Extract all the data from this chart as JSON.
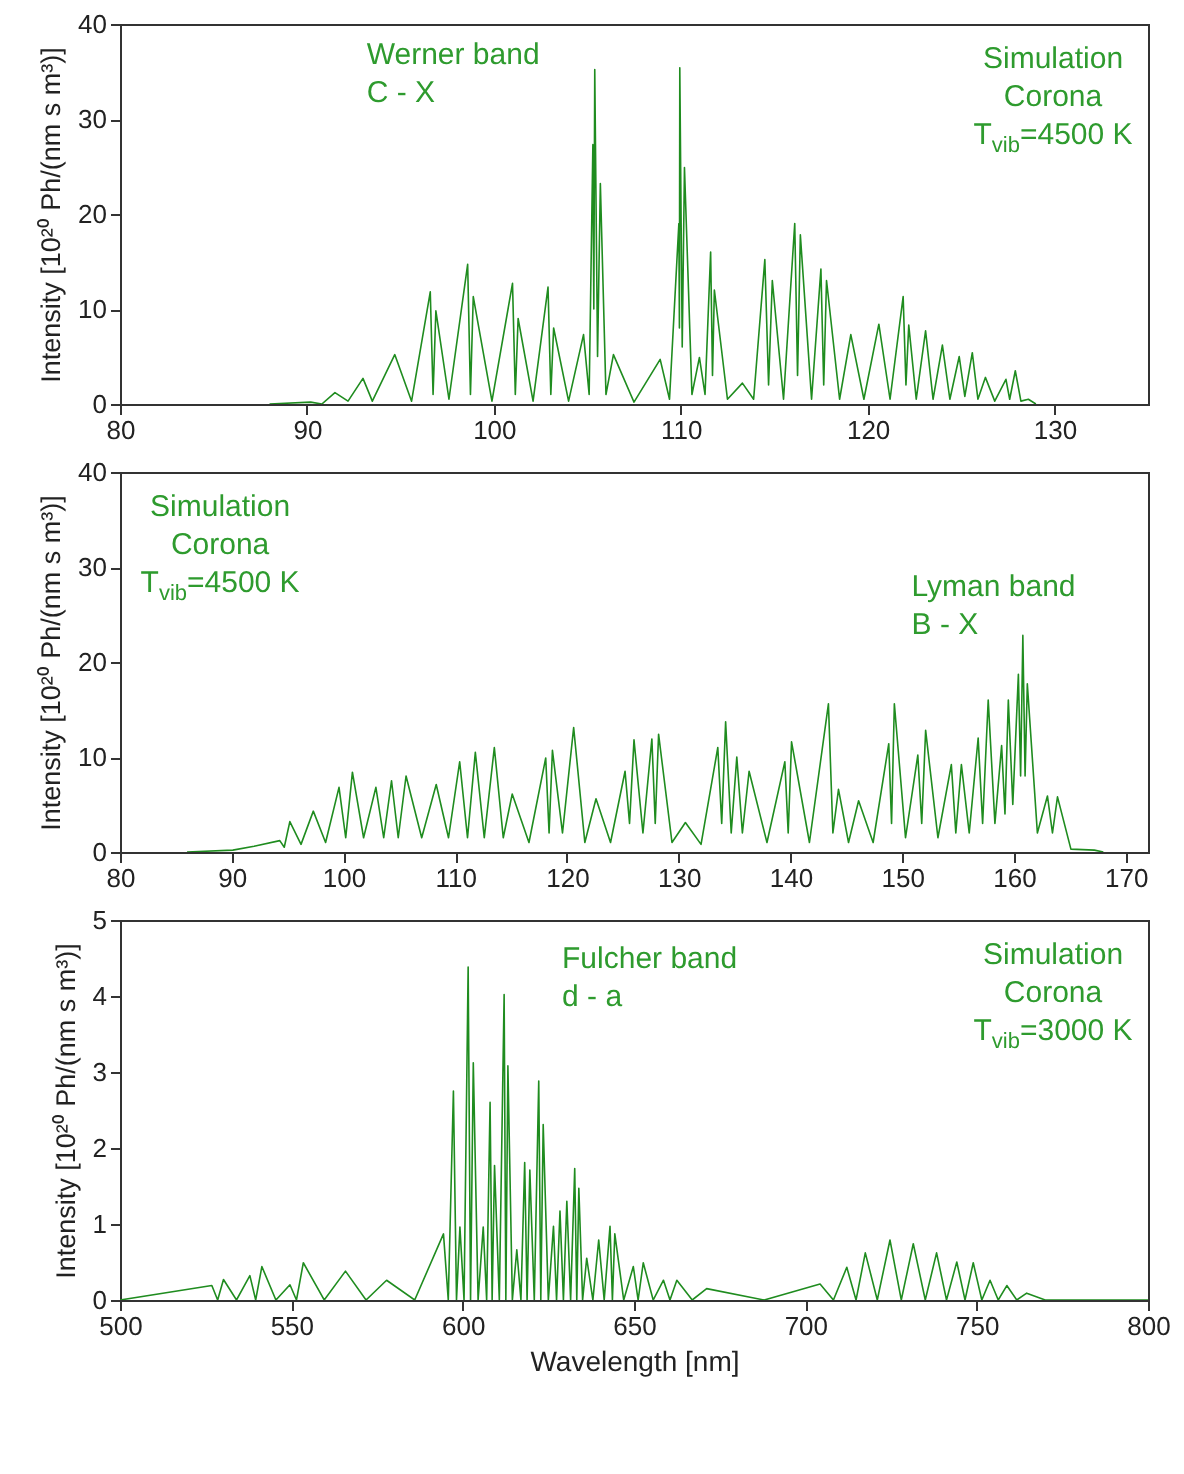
{
  "chart_data": [
    {
      "type": "line",
      "ylabel": "Intensity [10²⁰ Ph/(nm s m³)]",
      "xlim": [
        80,
        135
      ],
      "xticks": [
        80,
        90,
        100,
        110,
        120,
        130
      ],
      "ylim": [
        0,
        40
      ],
      "yticks": [
        0,
        10,
        20,
        30,
        40
      ],
      "annotations": [
        "Werner band\nC - X",
        "Simulation\nCorona\nT$_{vib}$=4500 K"
      ],
      "x": [
        88,
        90.2,
        90.8,
        91.5,
        92.2,
        93.0,
        93.5,
        94.7,
        95.6,
        96.6,
        96.75,
        96.9,
        97.6,
        98.6,
        98.75,
        98.9,
        99.9,
        101.0,
        101.15,
        101.3,
        102.1,
        102.9,
        103.05,
        103.2,
        104.0,
        104.8,
        105.1,
        105.3,
        105.35,
        105.4,
        105.55,
        105.7,
        106.0,
        106.4,
        107.5,
        108.9,
        109.4,
        109.9,
        109.93,
        109.95,
        110.08,
        110.2,
        110.6,
        111.0,
        111.3,
        111.6,
        111.7,
        111.8,
        112.5,
        113.3,
        113.9,
        114.5,
        114.7,
        114.9,
        115.5,
        116.1,
        116.25,
        116.4,
        117.0,
        117.5,
        117.65,
        117.8,
        118.5,
        119.1,
        119.8,
        120.6,
        121.2,
        121.9,
        122.05,
        122.2,
        122.6,
        123.1,
        123.5,
        124.0,
        124.4,
        124.9,
        125.2,
        125.6,
        125.9,
        126.3,
        126.8,
        127.4,
        127.6,
        127.9,
        128.2,
        128.6,
        129
      ],
      "series": [
        {
          "color": "#1f8c1f",
          "values": [
            0,
            0.2,
            0,
            1.2,
            0.3,
            2.7,
            0.3,
            5.2,
            0.3,
            11.8,
            1,
            9.8,
            0.5,
            14.7,
            1,
            11.3,
            0.3,
            12.7,
            1,
            9,
            0.3,
            12.3,
            1,
            8,
            0.3,
            7.3,
            1,
            27.3,
            10,
            35.2,
            5,
            23.2,
            1,
            5.2,
            0.2,
            4.7,
            0.5,
            19,
            8,
            35.4,
            6,
            24.9,
            1,
            4.9,
            1,
            16,
            3,
            12,
            0.5,
            2.2,
            0.5,
            15.2,
            2,
            13,
            0.5,
            19,
            3,
            17.8,
            0.5,
            14.2,
            2,
            13,
            0.5,
            7.3,
            0.5,
            8.4,
            0.5,
            11.3,
            2,
            8.3,
            0.5,
            7.7,
            0.5,
            6.2,
            0.5,
            5,
            0.8,
            5.4,
            0.5,
            2.8,
            0.3,
            2.6,
            0.5,
            3.5,
            0.3,
            0.5,
            0
          ]
        }
      ]
    },
    {
      "type": "line",
      "ylabel": "Intensity [10²⁰ Ph/(nm s m³)]",
      "xlim": [
        80,
        172
      ],
      "xticks": [
        80,
        90,
        100,
        110,
        120,
        130,
        140,
        150,
        160,
        170
      ],
      "ylim": [
        0,
        40
      ],
      "yticks": [
        0,
        10,
        20,
        30,
        40
      ],
      "annotations": [
        "Simulation\nCorona\nT$_{vib}$=4500 K",
        "Lyman band\nB - X"
      ],
      "x": [
        86,
        90.1,
        92,
        94.3,
        94.7,
        95.2,
        96.2,
        97.3,
        98.4,
        99.6,
        100.2,
        100.8,
        101.8,
        102.9,
        103.6,
        104.3,
        104.9,
        105.6,
        107,
        108.3,
        109.4,
        110.4,
        111.1,
        111.8,
        112.6,
        113.5,
        114.3,
        115.1,
        116.6,
        118.1,
        118.4,
        118.7,
        119.6,
        120.6,
        121.6,
        122.6,
        123.9,
        125.2,
        125.6,
        126.0,
        126.8,
        127.6,
        127.9,
        128.2,
        129.4,
        130.6,
        132,
        133.5,
        133.85,
        134.2,
        134.7,
        135.2,
        135.7,
        136.3,
        137.9,
        139.5,
        139.8,
        140.1,
        141.7,
        143.4,
        143.8,
        144.3,
        145.2,
        146.1,
        147.4,
        148.8,
        149.05,
        149.3,
        150.3,
        151.4,
        151.75,
        152.1,
        153.2,
        154.4,
        154.8,
        155.3,
        156,
        156.8,
        157.2,
        157.7,
        158.3,
        158.9,
        159.2,
        159.5,
        159.9,
        160.4,
        160.6,
        160.8,
        161.0,
        161.2,
        162.1,
        163.0,
        163.45,
        163.9,
        165.1,
        167.2,
        168
      ],
      "series": [
        {
          "color": "#1f8c1f",
          "values": [
            0,
            0.2,
            0.6,
            1.2,
            0.5,
            3.2,
            0.8,
            4.3,
            1,
            6.8,
            1.5,
            8.4,
            1.5,
            6.8,
            1.5,
            7.5,
            1.5,
            8,
            1.5,
            7.1,
            1.5,
            9.5,
            1.5,
            10.5,
            1.5,
            11,
            1.5,
            6.1,
            1,
            9.9,
            2,
            10.7,
            2,
            13.1,
            1,
            5.6,
            1,
            8.5,
            3,
            11.8,
            2,
            11.9,
            3,
            12.4,
            1,
            3.1,
            0.8,
            11,
            3,
            13.7,
            2,
            10,
            2,
            8.5,
            1,
            9.5,
            2,
            11.6,
            1,
            15.6,
            2,
            6.6,
            1,
            5.4,
            1,
            11.4,
            3,
            15.6,
            1.5,
            10.2,
            3,
            12.8,
            1.5,
            9.2,
            2,
            9.2,
            2,
            12,
            3,
            16,
            3,
            11.2,
            4,
            16,
            5,
            18.7,
            8,
            22.8,
            8,
            17.7,
            2,
            5.9,
            2,
            5.8,
            0.3,
            0.2,
            0
          ]
        }
      ]
    },
    {
      "type": "line",
      "xlabel": "Wavelength [nm]",
      "ylabel": "Intensity [10²⁰ Ph/(nm s m³)]",
      "xlim": [
        500,
        800
      ],
      "xticks": [
        500,
        550,
        600,
        650,
        700,
        750,
        800
      ],
      "ylim": [
        0,
        5
      ],
      "yticks": [
        0,
        1,
        2,
        3,
        4,
        5
      ],
      "annotations": [
        "Fulcher band\nd - a",
        "Simulation\nCorona\nT$_{vib}$=3000 K"
      ],
      "x": [
        500,
        526.8,
        528.5,
        530.2,
        534,
        537.9,
        539.6,
        541.4,
        545.5,
        549.6,
        551.5,
        553.5,
        559.6,
        565.8,
        571.8,
        577.8,
        586,
        594.4,
        595.8,
        597.3,
        598.2,
        599.2,
        600.4,
        601.6,
        602.3,
        603.1,
        604.5,
        606.0,
        607,
        608.0,
        608.6,
        609.3,
        610.7,
        612.1,
        612.6,
        613.2,
        614.5,
        615.8,
        617,
        618.1,
        618.8,
        619.6,
        620.9,
        622.2,
        622.8,
        623.5,
        625,
        626.5,
        627.4,
        628.4,
        629.4,
        630.4,
        631.5,
        632.7,
        633.3,
        633.9,
        635,
        636.2,
        638,
        639.7,
        641.3,
        643.0,
        643.7,
        644.4,
        647,
        649.8,
        651.2,
        652.7,
        655.6,
        658.6,
        660.5,
        662.5,
        667,
        671.2,
        688,
        704.3,
        708.2,
        712.1,
        714.8,
        717.5,
        721,
        724.7,
        728,
        731.5,
        735,
        738.3,
        741.2,
        744.2,
        746.6,
        749.0,
        751.5,
        753.9,
        756.3,
        758.8,
        761.7,
        764.6,
        770,
        800
      ],
      "series": [
        {
          "color": "#1f8c1f",
          "values": [
            0,
            0.19,
            0,
            0.27,
            0,
            0.32,
            0,
            0.44,
            0,
            0.2,
            0,
            0.49,
            0,
            0.38,
            0,
            0.26,
            0,
            0.87,
            0,
            2.75,
            0,
            0.96,
            0,
            4.38,
            0,
            3.12,
            0,
            0.96,
            0,
            2.6,
            0,
            1.77,
            0,
            4.02,
            0,
            3.08,
            0,
            0.66,
            0,
            1.81,
            0,
            1.71,
            0,
            2.88,
            0,
            2.31,
            0,
            0.97,
            0,
            1.17,
            0,
            1.3,
            0,
            1.73,
            0,
            1.47,
            0,
            0.55,
            0,
            0.79,
            0,
            0.97,
            0,
            0.87,
            0,
            0.44,
            0,
            0.49,
            0,
            0.26,
            0,
            0.26,
            0,
            0.15,
            0,
            0.21,
            0,
            0.43,
            0,
            0.62,
            0,
            0.79,
            0,
            0.74,
            0,
            0.62,
            0,
            0.5,
            0,
            0.49,
            0,
            0.26,
            0,
            0.19,
            0,
            0.09,
            0,
            0
          ]
        }
      ]
    }
  ]
}
